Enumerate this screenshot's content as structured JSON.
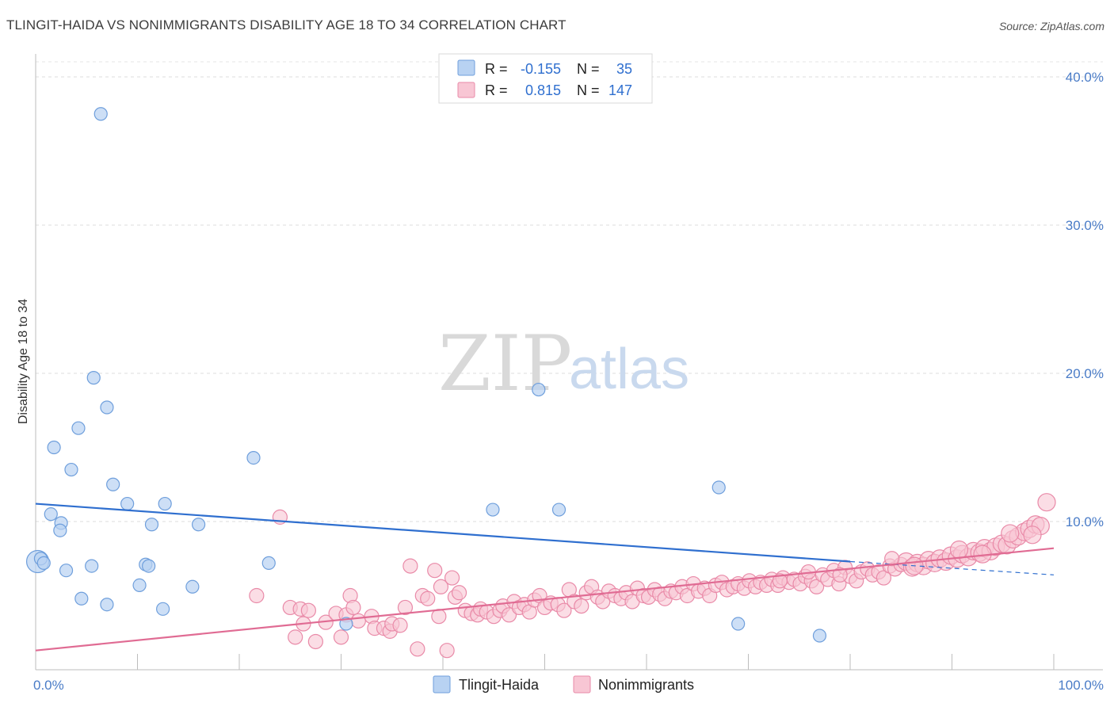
{
  "title": "TLINGIT-HAIDA VS NONIMMIGRANTS DISABILITY AGE 18 TO 34 CORRELATION CHART",
  "source": "Source: ZipAtlas.com",
  "watermark": {
    "zip": "ZIP",
    "atlas": "atlas"
  },
  "legend": {
    "r_label": "R =",
    "n_label": "N =",
    "rows": [
      {
        "series": "Tlingit-Haida",
        "r": "-0.155",
        "n": "35",
        "fill": "#b8d2f2",
        "stroke": "#6f9fdc"
      },
      {
        "series": "Nonimmigrants",
        "r": "0.815",
        "n": "147",
        "fill": "#f8c6d4",
        "stroke": "#e98aa8"
      }
    ]
  },
  "chart_data": {
    "type": "scatter",
    "xlabel": "",
    "ylabel": "Disability Age 18 to 34",
    "xlim": [
      0,
      100
    ],
    "ylim": [
      0,
      40
    ],
    "x_tick_labels": [
      {
        "value": 0,
        "label": "0.0%"
      },
      {
        "value": 100,
        "label": "100.0%"
      }
    ],
    "y_tick_labels": [
      {
        "value": 10,
        "label": "10.0%"
      },
      {
        "value": 20,
        "label": "20.0%"
      },
      {
        "value": 30,
        "label": "30.0%"
      },
      {
        "value": 40,
        "label": "40.0%"
      }
    ],
    "colors": {
      "blue_fill": "#b8d2f2",
      "blue_stroke": "#6f9fdc",
      "blue_line": "#2f6fcf",
      "pink_fill": "#f8c6d4",
      "pink_stroke": "#e98aa8",
      "pink_line": "#e06b93"
    },
    "series": [
      {
        "name": "Tlingit-Haida",
        "points": [
          [
            0.2,
            7.3
          ],
          [
            0.5,
            7.5
          ],
          [
            0.8,
            7.2
          ],
          [
            1.5,
            10.5
          ],
          [
            1.8,
            15.0
          ],
          [
            2.5,
            9.9
          ],
          [
            2.4,
            9.4
          ],
          [
            3.0,
            6.7
          ],
          [
            3.5,
            13.5
          ],
          [
            4.2,
            16.3
          ],
          [
            4.5,
            4.8
          ],
          [
            5.5,
            7.0
          ],
          [
            5.7,
            19.7
          ],
          [
            6.4,
            37.5
          ],
          [
            7.0,
            17.7
          ],
          [
            7.0,
            4.4
          ],
          [
            7.6,
            12.5
          ],
          [
            9.0,
            11.2
          ],
          [
            10.2,
            5.7
          ],
          [
            10.8,
            7.1
          ],
          [
            11.1,
            7.0
          ],
          [
            11.4,
            9.8
          ],
          [
            12.5,
            4.1
          ],
          [
            12.7,
            11.2
          ],
          [
            15.4,
            5.6
          ],
          [
            16.0,
            9.8
          ],
          [
            21.4,
            14.3
          ],
          [
            22.9,
            7.2
          ],
          [
            30.5,
            3.1
          ],
          [
            44.9,
            10.8
          ],
          [
            49.4,
            18.9
          ],
          [
            51.4,
            10.8
          ],
          [
            67.1,
            12.3
          ],
          [
            69.0,
            3.1
          ],
          [
            77.0,
            2.3
          ]
        ],
        "trend": {
          "x": [
            0,
            80
          ],
          "y": [
            11.2,
            7.3
          ]
        },
        "trend_dashed": {
          "x": [
            80,
            100
          ],
          "y": [
            7.3,
            6.4
          ]
        }
      },
      {
        "name": "Nonimmigrants",
        "points": [
          [
            21.7,
            5.0
          ],
          [
            24.0,
            10.3
          ],
          [
            25.0,
            4.2
          ],
          [
            25.5,
            2.2
          ],
          [
            26.0,
            4.1
          ],
          [
            26.3,
            3.1
          ],
          [
            26.8,
            4.0
          ],
          [
            27.5,
            1.9
          ],
          [
            28.5,
            3.2
          ],
          [
            29.5,
            3.8
          ],
          [
            30.0,
            2.2
          ],
          [
            30.5,
            3.7
          ],
          [
            30.9,
            5.0
          ],
          [
            31.2,
            4.2
          ],
          [
            31.7,
            3.3
          ],
          [
            33.0,
            3.6
          ],
          [
            33.3,
            2.8
          ],
          [
            34.2,
            2.8
          ],
          [
            34.8,
            2.6
          ],
          [
            35.0,
            3.1
          ],
          [
            35.8,
            3.0
          ],
          [
            36.3,
            4.2
          ],
          [
            36.8,
            7.0
          ],
          [
            37.5,
            1.4
          ],
          [
            38.0,
            5.0
          ],
          [
            38.5,
            4.8
          ],
          [
            39.2,
            6.7
          ],
          [
            39.6,
            3.6
          ],
          [
            39.8,
            5.6
          ],
          [
            40.4,
            1.3
          ],
          [
            40.9,
            6.2
          ],
          [
            41.2,
            4.9
          ],
          [
            41.6,
            5.2
          ],
          [
            42.2,
            4.0
          ],
          [
            42.8,
            3.8
          ],
          [
            43.4,
            3.7
          ],
          [
            43.7,
            4.1
          ],
          [
            44.3,
            3.9
          ],
          [
            45.0,
            3.6
          ],
          [
            45.6,
            4.0
          ],
          [
            45.9,
            4.3
          ],
          [
            46.5,
            3.7
          ],
          [
            47.0,
            4.6
          ],
          [
            47.5,
            4.2
          ],
          [
            48.0,
            4.4
          ],
          [
            48.5,
            3.9
          ],
          [
            49.0,
            4.7
          ],
          [
            49.5,
            5.0
          ],
          [
            50.0,
            4.2
          ],
          [
            50.6,
            4.5
          ],
          [
            51.3,
            4.4
          ],
          [
            51.9,
            4.0
          ],
          [
            52.4,
            5.4
          ],
          [
            52.9,
            4.6
          ],
          [
            53.6,
            4.3
          ],
          [
            54.1,
            5.2
          ],
          [
            54.6,
            5.6
          ],
          [
            55.2,
            4.9
          ],
          [
            55.7,
            4.6
          ],
          [
            56.3,
            5.3
          ],
          [
            56.9,
            5.0
          ],
          [
            57.5,
            4.8
          ],
          [
            58.0,
            5.2
          ],
          [
            58.6,
            4.6
          ],
          [
            59.1,
            5.5
          ],
          [
            59.7,
            5.0
          ],
          [
            60.2,
            4.9
          ],
          [
            60.8,
            5.4
          ],
          [
            61.3,
            5.1
          ],
          [
            61.8,
            4.8
          ],
          [
            62.4,
            5.3
          ],
          [
            62.9,
            5.2
          ],
          [
            63.5,
            5.6
          ],
          [
            64.0,
            5.0
          ],
          [
            64.6,
            5.8
          ],
          [
            65.1,
            5.3
          ],
          [
            65.7,
            5.5
          ],
          [
            66.2,
            5.0
          ],
          [
            66.8,
            5.7
          ],
          [
            67.4,
            5.9
          ],
          [
            67.9,
            5.4
          ],
          [
            68.5,
            5.6
          ],
          [
            69.0,
            5.8
          ],
          [
            69.6,
            5.5
          ],
          [
            70.1,
            6.0
          ],
          [
            70.7,
            5.6
          ],
          [
            71.2,
            5.9
          ],
          [
            71.8,
            5.7
          ],
          [
            72.3,
            6.1
          ],
          [
            72.9,
            5.7
          ],
          [
            73.4,
            6.2
          ],
          [
            74.0,
            5.9
          ],
          [
            74.5,
            6.1
          ],
          [
            75.1,
            5.8
          ],
          [
            75.6,
            6.3
          ],
          [
            76.2,
            6.0
          ],
          [
            76.7,
            5.6
          ],
          [
            77.3,
            6.4
          ],
          [
            77.8,
            6.1
          ],
          [
            78.4,
            6.7
          ],
          [
            78.9,
            5.8
          ],
          [
            79.5,
            6.9
          ],
          [
            80.0,
            6.3
          ],
          [
            80.6,
            6.0
          ],
          [
            81.1,
            6.6
          ],
          [
            81.7,
            6.8
          ],
          [
            82.2,
            6.4
          ],
          [
            82.8,
            6.6
          ],
          [
            83.3,
            6.2
          ],
          [
            83.9,
            7.0
          ],
          [
            84.4,
            6.8
          ],
          [
            85.0,
            7.1
          ],
          [
            85.5,
            7.3
          ],
          [
            86.1,
            6.9
          ],
          [
            86.6,
            7.2
          ],
          [
            87.2,
            7.0
          ],
          [
            87.7,
            7.4
          ],
          [
            88.3,
            7.2
          ],
          [
            88.8,
            7.5
          ],
          [
            89.4,
            7.3
          ],
          [
            89.9,
            7.7
          ],
          [
            90.5,
            7.5
          ],
          [
            91.0,
            7.8
          ],
          [
            91.6,
            7.6
          ],
          [
            92.1,
            8.0
          ],
          [
            92.7,
            7.9
          ],
          [
            93.2,
            8.2
          ],
          [
            93.8,
            8.0
          ],
          [
            94.3,
            8.3
          ],
          [
            94.9,
            8.5
          ],
          [
            95.4,
            8.4
          ],
          [
            96.0,
            8.8
          ],
          [
            96.5,
            9.0
          ],
          [
            97.1,
            9.3
          ],
          [
            97.6,
            9.5
          ],
          [
            98.2,
            9.8
          ],
          [
            98.7,
            9.7
          ],
          [
            99.3,
            11.3
          ],
          [
            84.1,
            7.5
          ],
          [
            86.3,
            7.0
          ],
          [
            90.7,
            8.1
          ],
          [
            93.0,
            7.8
          ],
          [
            95.7,
            9.2
          ],
          [
            97.9,
            9.1
          ],
          [
            79.0,
            6.4
          ],
          [
            75.9,
            6.6
          ],
          [
            73.1,
            6.0
          ]
        ],
        "trend": {
          "x": [
            0,
            100
          ],
          "y": [
            1.3,
            8.2
          ]
        }
      }
    ],
    "grid": "horizontal dashed",
    "legend_placement": "top-center and bottom-center"
  },
  "bottom_legend": [
    {
      "label": "Tlingit-Haida",
      "fill": "#b8d2f2",
      "stroke": "#6f9fdc"
    },
    {
      "label": "Nonimmigrants",
      "fill": "#f8c6d4",
      "stroke": "#e98aa8"
    }
  ]
}
